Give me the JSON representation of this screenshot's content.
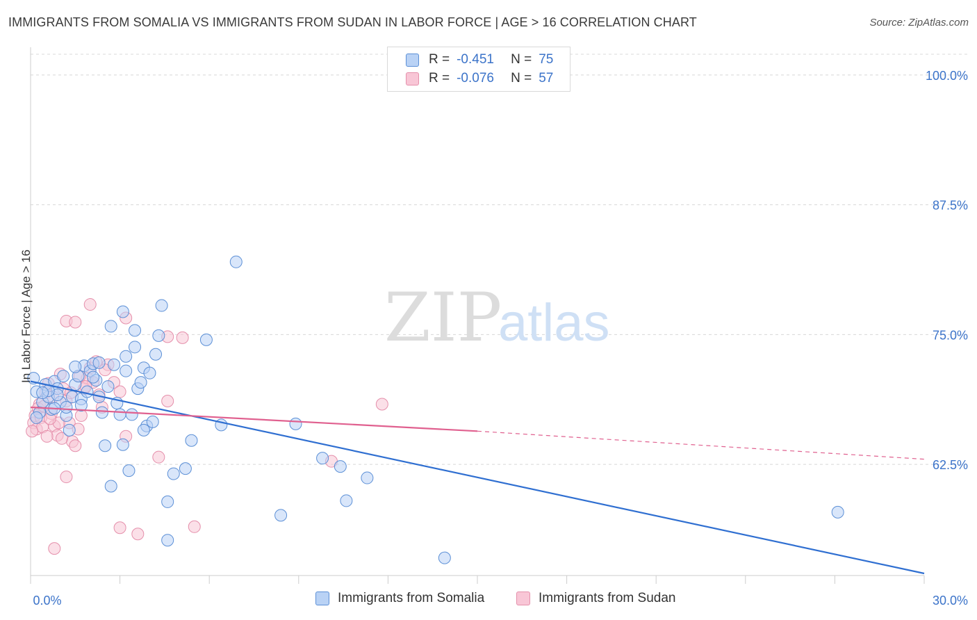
{
  "title": "IMMIGRANTS FROM SOMALIA VS IMMIGRANTS FROM SUDAN IN LABOR FORCE | AGE > 16 CORRELATION CHART",
  "source": "Source: ZipAtlas.com",
  "watermark": {
    "zip": "ZIP",
    "atlas": "atlas"
  },
  "legend": {
    "rows": [
      {
        "r_label": "R =",
        "r_value": "-0.451",
        "n_label": "N =",
        "n_value": "75"
      },
      {
        "r_label": "R =",
        "r_value": "-0.076",
        "n_label": "N =",
        "n_value": "57"
      }
    ]
  },
  "bottom_legend": {
    "somalia": "Immigrants from Somalia",
    "sudan": "Immigrants from Sudan"
  },
  "colors": {
    "blue_fill": "#b9d2f5",
    "blue_stroke": "#5b8fd6",
    "blue_line": "#2f6fd1",
    "pink_fill": "#f8c6d6",
    "pink_stroke": "#e58fab",
    "pink_line": "#e0608f",
    "tick_label": "#3b73c9",
    "grid": "#d8d8d8"
  },
  "chart_data": {
    "type": "scatter",
    "title": "IMMIGRANTS FROM SOMALIA VS IMMIGRANTS FROM SUDAN IN LABOR FORCE | AGE > 16 CORRELATION CHART",
    "xlabel": "",
    "ylabel": "In Labor Force | Age > 16",
    "xlim": [
      0,
      30
    ],
    "ylim": [
      51.8,
      102
    ],
    "x_tick_labels": [
      "0.0%",
      "30.0%"
    ],
    "y_ticks": [
      62.5,
      75.0,
      87.5,
      100.0
    ],
    "y_tick_labels": [
      "62.5%",
      "75.0%",
      "87.5%",
      "100.0%"
    ],
    "series": [
      {
        "name": "Immigrants from Somalia",
        "r": -0.451,
        "n": 75,
        "trend": {
          "x": [
            0,
            30
          ],
          "y": [
            70.5,
            52.0
          ],
          "dashed_from": null
        },
        "points": [
          [
            0.2,
            69.5
          ],
          [
            0.3,
            67.5
          ],
          [
            0.4,
            68.5
          ],
          [
            0.5,
            70.2
          ],
          [
            0.6,
            69.0
          ],
          [
            0.7,
            67.8
          ],
          [
            0.8,
            70.5
          ],
          [
            0.9,
            69.8
          ],
          [
            1.0,
            68.5
          ],
          [
            1.1,
            71.0
          ],
          [
            1.2,
            67.2
          ],
          [
            1.3,
            65.8
          ],
          [
            1.4,
            69.0
          ],
          [
            1.5,
            70.2
          ],
          [
            1.6,
            71.0
          ],
          [
            1.7,
            68.8
          ],
          [
            1.8,
            72.0
          ],
          [
            1.9,
            69.5
          ],
          [
            2.0,
            71.5
          ],
          [
            2.1,
            72.2
          ],
          [
            2.2,
            70.6
          ],
          [
            2.3,
            69.0
          ],
          [
            2.4,
            67.5
          ],
          [
            2.5,
            64.3
          ],
          [
            2.6,
            70.0
          ],
          [
            2.7,
            75.8
          ],
          [
            2.8,
            72.1
          ],
          [
            2.9,
            68.4
          ],
          [
            3.0,
            67.3
          ],
          [
            3.1,
            77.2
          ],
          [
            3.2,
            72.9
          ],
          [
            3.3,
            61.9
          ],
          [
            3.4,
            67.3
          ],
          [
            3.5,
            75.4
          ],
          [
            3.6,
            69.8
          ],
          [
            3.7,
            70.4
          ],
          [
            3.8,
            71.8
          ],
          [
            3.9,
            66.2
          ],
          [
            4.0,
            71.3
          ],
          [
            4.1,
            66.6
          ],
          [
            4.2,
            73.1
          ],
          [
            4.3,
            74.9
          ],
          [
            4.4,
            77.8
          ],
          [
            4.6,
            58.9
          ],
          [
            4.8,
            61.6
          ],
          [
            5.2,
            62.1
          ],
          [
            5.4,
            64.8
          ],
          [
            5.9,
            74.5
          ],
          [
            6.4,
            66.3
          ],
          [
            6.9,
            82.0
          ],
          [
            3.1,
            64.4
          ],
          [
            1.2,
            68.0
          ],
          [
            0.9,
            69.2
          ],
          [
            2.7,
            60.4
          ],
          [
            3.5,
            73.8
          ],
          [
            4.6,
            55.2
          ],
          [
            8.4,
            57.6
          ],
          [
            8.9,
            66.4
          ],
          [
            9.8,
            63.1
          ],
          [
            10.4,
            62.3
          ],
          [
            10.6,
            59.0
          ],
          [
            11.3,
            61.2
          ],
          [
            13.9,
            53.5
          ],
          [
            27.1,
            57.9
          ],
          [
            0.1,
            70.8
          ],
          [
            0.2,
            67.0
          ],
          [
            0.6,
            69.6
          ],
          [
            1.5,
            71.9
          ],
          [
            2.3,
            72.3
          ],
          [
            3.2,
            71.5
          ],
          [
            2.1,
            70.9
          ],
          [
            0.4,
            69.4
          ],
          [
            3.8,
            65.8
          ],
          [
            1.7,
            68.2
          ],
          [
            0.8,
            67.9
          ]
        ]
      },
      {
        "name": "Immigrants from Sudan",
        "r": -0.076,
        "n": 57,
        "trend": {
          "x": [
            0,
            15,
            30
          ],
          "y": [
            68.0,
            65.7,
            63.0
          ],
          "dashed_from": 15
        },
        "points": [
          [
            0.1,
            66.5
          ],
          [
            0.15,
            67.2
          ],
          [
            0.2,
            65.9
          ],
          [
            0.3,
            68.3
          ],
          [
            0.35,
            67.0
          ],
          [
            0.4,
            66.1
          ],
          [
            0.5,
            69.4
          ],
          [
            0.6,
            70.3
          ],
          [
            0.7,
            67.4
          ],
          [
            0.8,
            66.2
          ],
          [
            0.9,
            65.3
          ],
          [
            1.0,
            71.2
          ],
          [
            1.1,
            69.8
          ],
          [
            1.2,
            68.6
          ],
          [
            1.3,
            66.5
          ],
          [
            1.4,
            64.7
          ],
          [
            1.5,
            64.3
          ],
          [
            1.6,
            65.9
          ],
          [
            1.7,
            67.2
          ],
          [
            1.8,
            69.8
          ],
          [
            1.9,
            70.8
          ],
          [
            2.0,
            71.8
          ],
          [
            2.1,
            70.4
          ],
          [
            2.2,
            72.4
          ],
          [
            2.3,
            69.2
          ],
          [
            2.4,
            68.0
          ],
          [
            2.6,
            72.1
          ],
          [
            2.8,
            70.4
          ],
          [
            3.0,
            69.5
          ],
          [
            3.2,
            65.2
          ],
          [
            3.0,
            56.4
          ],
          [
            3.2,
            76.6
          ],
          [
            1.2,
            76.3
          ],
          [
            1.5,
            76.2
          ],
          [
            2.0,
            77.9
          ],
          [
            0.8,
            54.4
          ],
          [
            1.2,
            61.3
          ],
          [
            3.6,
            55.8
          ],
          [
            4.3,
            63.2
          ],
          [
            4.6,
            68.6
          ],
          [
            4.6,
            74.8
          ],
          [
            5.1,
            74.7
          ],
          [
            5.5,
            56.5
          ],
          [
            10.1,
            62.8
          ],
          [
            11.8,
            68.3
          ],
          [
            0.05,
            65.7
          ],
          [
            0.25,
            67.9
          ],
          [
            0.45,
            68.1
          ],
          [
            0.55,
            65.2
          ],
          [
            0.75,
            69.0
          ],
          [
            0.95,
            66.5
          ],
          [
            1.05,
            65.0
          ],
          [
            1.35,
            69.4
          ],
          [
            1.65,
            71.0
          ],
          [
            2.5,
            71.6
          ],
          [
            1.85,
            70.0
          ],
          [
            0.65,
            66.9
          ]
        ]
      }
    ]
  }
}
